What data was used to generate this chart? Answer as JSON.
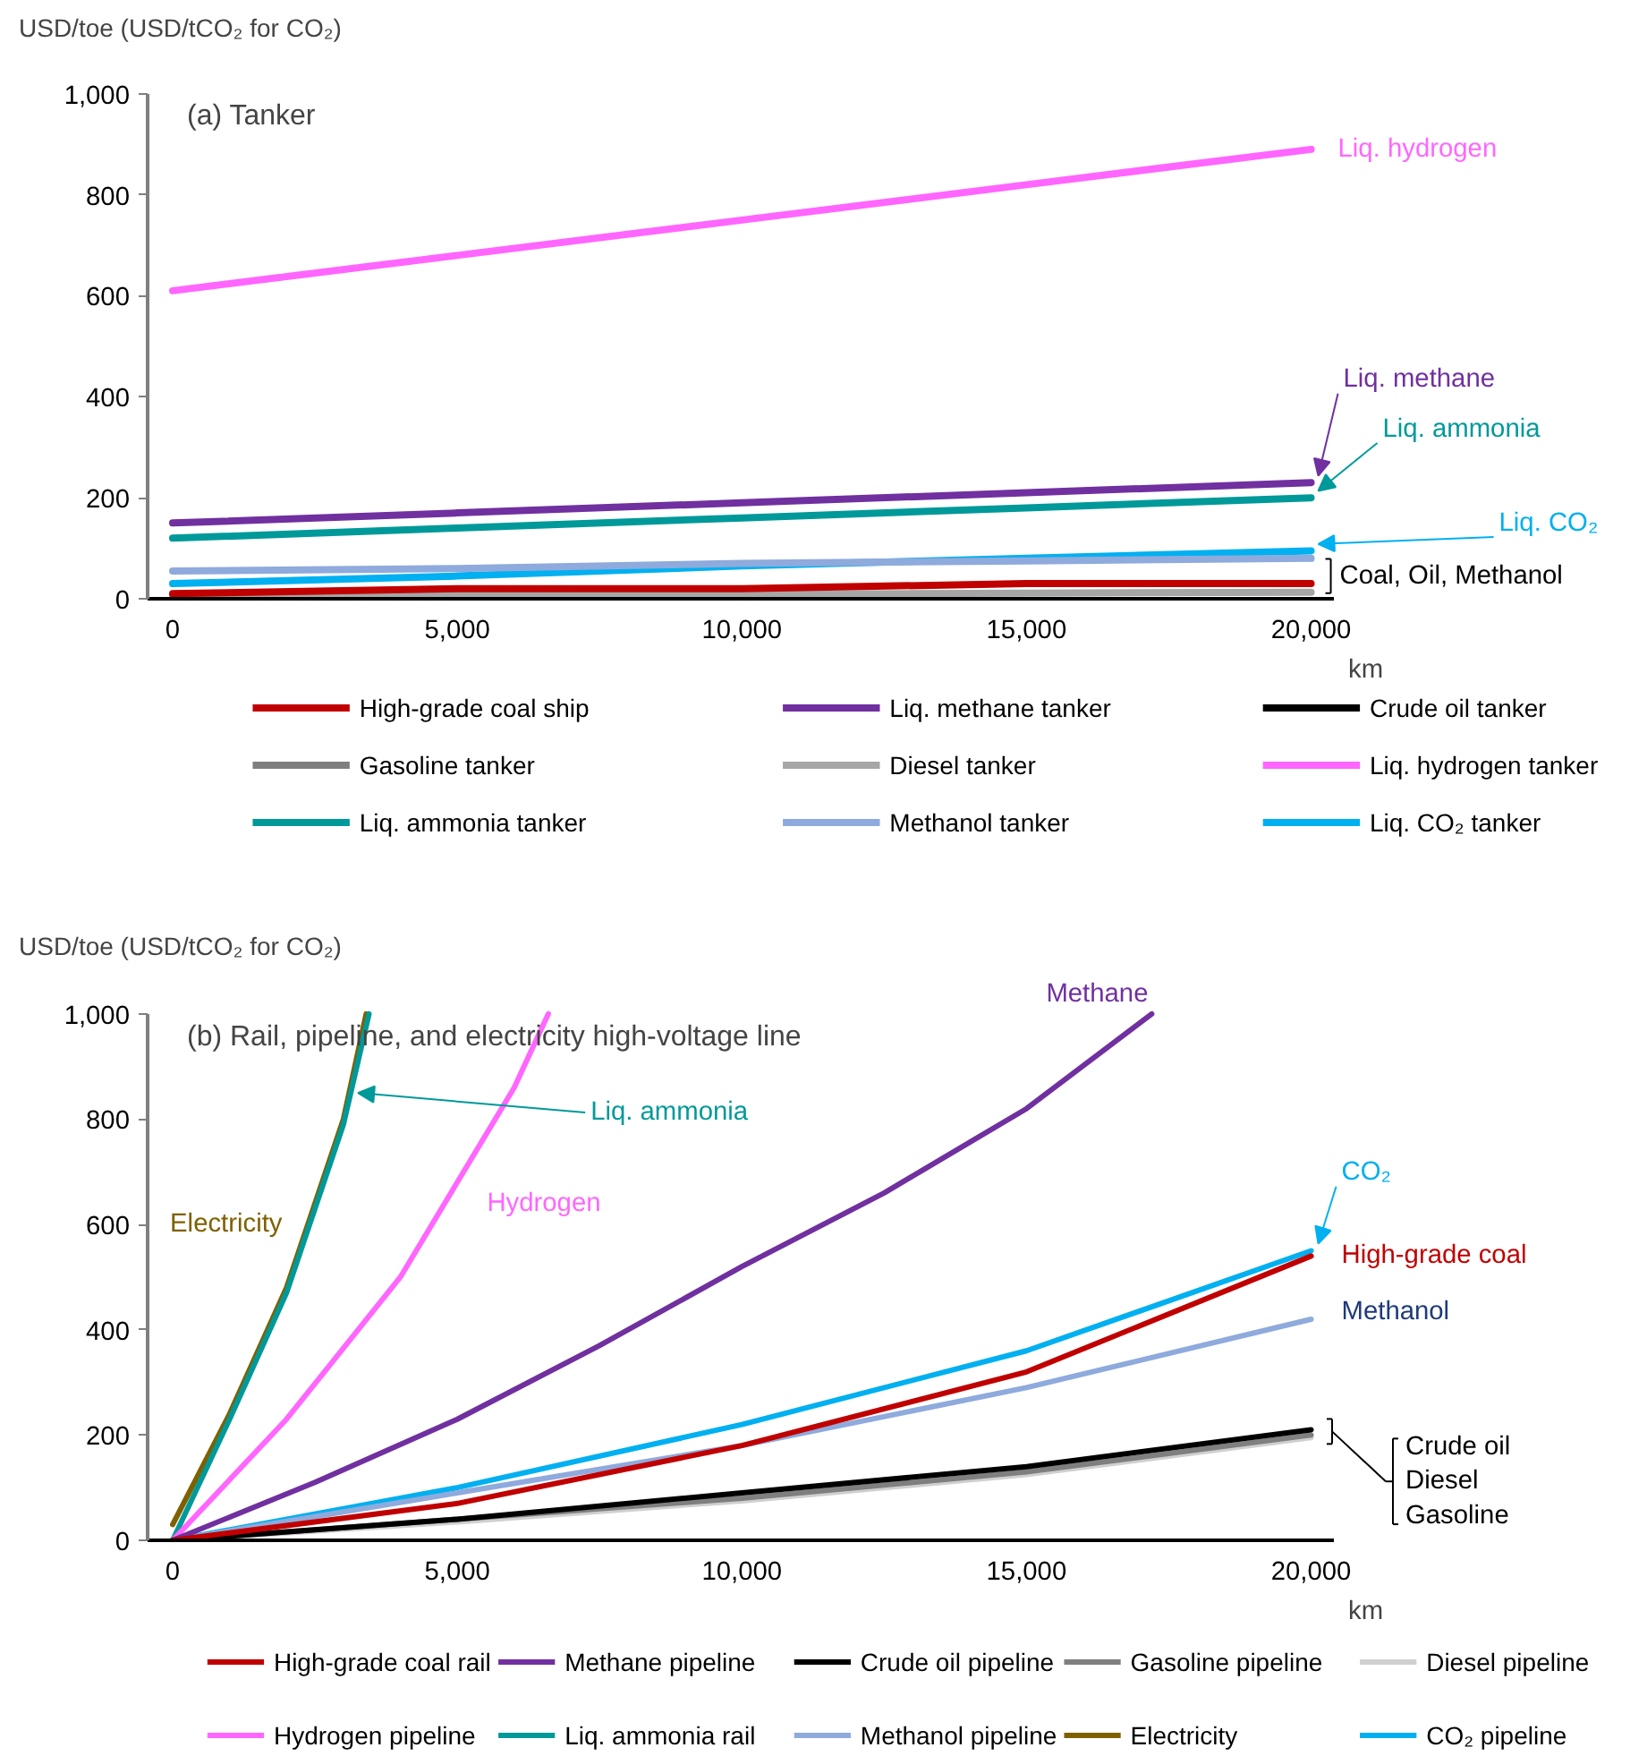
{
  "chart_data": [
    {
      "type": "line",
      "title": "(a) Tanker",
      "ylabel": "USD/toe (USD/tCO₂ for CO₂)",
      "xlabel": "km",
      "x": [
        0,
        5000,
        10000,
        15000,
        20000
      ],
      "xlim": [
        -440,
        20400
      ],
      "ylim": [
        0,
        1000
      ],
      "xticks": [
        0,
        {
          "value": 5000,
          "label": "5,000"
        },
        {
          "value": 10000,
          "label": "10,000"
        },
        {
          "value": 15000,
          "label": "15,000"
        },
        {
          "value": 20000,
          "label": "20,000"
        }
      ],
      "yticks": [
        0,
        200,
        400,
        600,
        800,
        {
          "value": 1000,
          "label": "1,000"
        }
      ],
      "grid": false,
      "legend": "bottom",
      "marker": "none",
      "line_style": "solid",
      "series": [
        {
          "name": "High-grade coal ship",
          "color": "#c00000",
          "values": [
            10,
            20,
            20,
            30,
            30
          ]
        },
        {
          "name": "Liq. methane tanker",
          "color": "#7030a0",
          "values": [
            150,
            170,
            190,
            210,
            230
          ]
        },
        {
          "name": "Crude oil tanker",
          "color": "#000000",
          "values": [
            null,
            null,
            null,
            null,
            null
          ]
        },
        {
          "name": "Gasoline tanker",
          "color": "#7f7f7f",
          "values": [
            null,
            null,
            null,
            null,
            null
          ]
        },
        {
          "name": "Diesel tanker",
          "color": "#a6a6a6",
          "values": [
            5,
            7,
            9,
            11,
            13
          ]
        },
        {
          "name": "Liq. hydrogen tanker",
          "color": "#ff66ff",
          "values": [
            610,
            680,
            750,
            820,
            890
          ]
        },
        {
          "name": "Liq. ammonia tanker",
          "color": "#009999",
          "values": [
            120,
            140,
            160,
            180,
            200
          ]
        },
        {
          "name": "Methanol tanker",
          "color": "#8faadc",
          "values": [
            55,
            60,
            70,
            75,
            80
          ]
        },
        {
          "name": "Liq. CO₂ tanker",
          "color": "#00b0f0",
          "values": [
            30,
            45,
            65,
            80,
            95
          ]
        }
      ],
      "annotations": [
        {
          "text": "Liq. hydrogen",
          "x": 20000,
          "y": 890
        },
        {
          "text": "Liq. methane",
          "x": 20000,
          "y": 230
        },
        {
          "text": "Liq. ammonia",
          "x": 20000,
          "y": 200
        },
        {
          "text": "Liq. CO₂",
          "x": 20000,
          "y": 95
        },
        {
          "text": "Coal, Oil, Methanol",
          "x": 20000,
          "y": 45
        }
      ]
    },
    {
      "type": "line",
      "title": "(b) Rail, pipeline, and electricity high-voltage line",
      "ylabel": "USD/toe (USD/tCO₂ for CO₂)",
      "xlabel": "km",
      "xlim": [
        -440,
        20400
      ],
      "ylim": [
        0,
        1000
      ],
      "xticks": [
        0,
        {
          "value": 5000,
          "label": "5,000"
        },
        {
          "value": 10000,
          "label": "10,000"
        },
        {
          "value": 15000,
          "label": "15,000"
        },
        {
          "value": 20000,
          "label": "20,000"
        }
      ],
      "yticks": [
        0,
        200,
        400,
        600,
        800,
        {
          "value": 1000,
          "label": "1,000"
        }
      ],
      "grid": false,
      "legend": "bottom",
      "marker": "none",
      "line_style": "solid",
      "series": [
        {
          "name": "High-grade coal rail",
          "color": "#c00000",
          "x": [
            0,
            5000,
            10000,
            15000,
            20000
          ],
          "values": [
            0,
            70,
            180,
            320,
            540
          ]
        },
        {
          "name": "Methane pipeline",
          "color": "#7030a0",
          "x": [
            0,
            2500,
            5000,
            7500,
            10000,
            12500,
            15000,
            17200
          ],
          "values": [
            0,
            110,
            230,
            370,
            520,
            660,
            820,
            1000
          ]
        },
        {
          "name": "Crude oil pipeline",
          "color": "#000000",
          "x": [
            0,
            5000,
            10000,
            15000,
            20000
          ],
          "values": [
            0,
            40,
            90,
            140,
            210
          ]
        },
        {
          "name": "Gasoline pipeline",
          "color": "#7f7f7f",
          "x": [
            0,
            5000,
            10000,
            15000,
            20000
          ],
          "values": [
            0,
            40,
            80,
            130,
            200
          ]
        },
        {
          "name": "Diesel pipeline",
          "color": "#d0d0d0",
          "x": [
            0,
            5000,
            10000,
            15000,
            20000
          ],
          "values": [
            0,
            35,
            75,
            125,
            195
          ]
        },
        {
          "name": "Hydrogen pipeline",
          "color": "#ff66ff",
          "x": [
            0,
            2000,
            4000,
            5000,
            6000,
            6600
          ],
          "values": [
            0,
            230,
            500,
            680,
            860,
            1000
          ]
        },
        {
          "name": "Liq. ammonia rail",
          "color": "#009999",
          "x": [
            0,
            1000,
            2000,
            3000,
            3450
          ],
          "values": [
            0,
            230,
            470,
            790,
            1000
          ]
        },
        {
          "name": "Methanol pipeline",
          "color": "#8faadc",
          "x": [
            0,
            5000,
            10000,
            15000,
            20000
          ],
          "values": [
            0,
            90,
            180,
            290,
            420
          ]
        },
        {
          "name": "Electricity",
          "color": "#7f6000",
          "x": [
            0,
            1000,
            2000,
            3000,
            3400
          ],
          "values": [
            30,
            240,
            480,
            800,
            1000
          ]
        },
        {
          "name": "CO₂ pipeline",
          "color": "#00b0f0",
          "x": [
            0,
            5000,
            10000,
            15000,
            20000
          ],
          "values": [
            0,
            100,
            220,
            360,
            550
          ]
        }
      ],
      "annotations": [
        {
          "text": "Methane",
          "x": 17200,
          "y": 1000
        },
        {
          "text": "Liq. ammonia",
          "x": 3130,
          "y": 850
        },
        {
          "text": "Electricity",
          "x": 2500,
          "y": 600
        },
        {
          "text": "Hydrogen",
          "x": 4800,
          "y": 640
        },
        {
          "text": "CO₂",
          "x": 20000,
          "y": 550
        },
        {
          "text": "High-grade coal",
          "x": 20000,
          "y": 540
        },
        {
          "text": "Methanol",
          "x": 20000,
          "y": 420
        },
        "Crude oil\nDiesel\nGasoline"
      ]
    }
  ]
}
